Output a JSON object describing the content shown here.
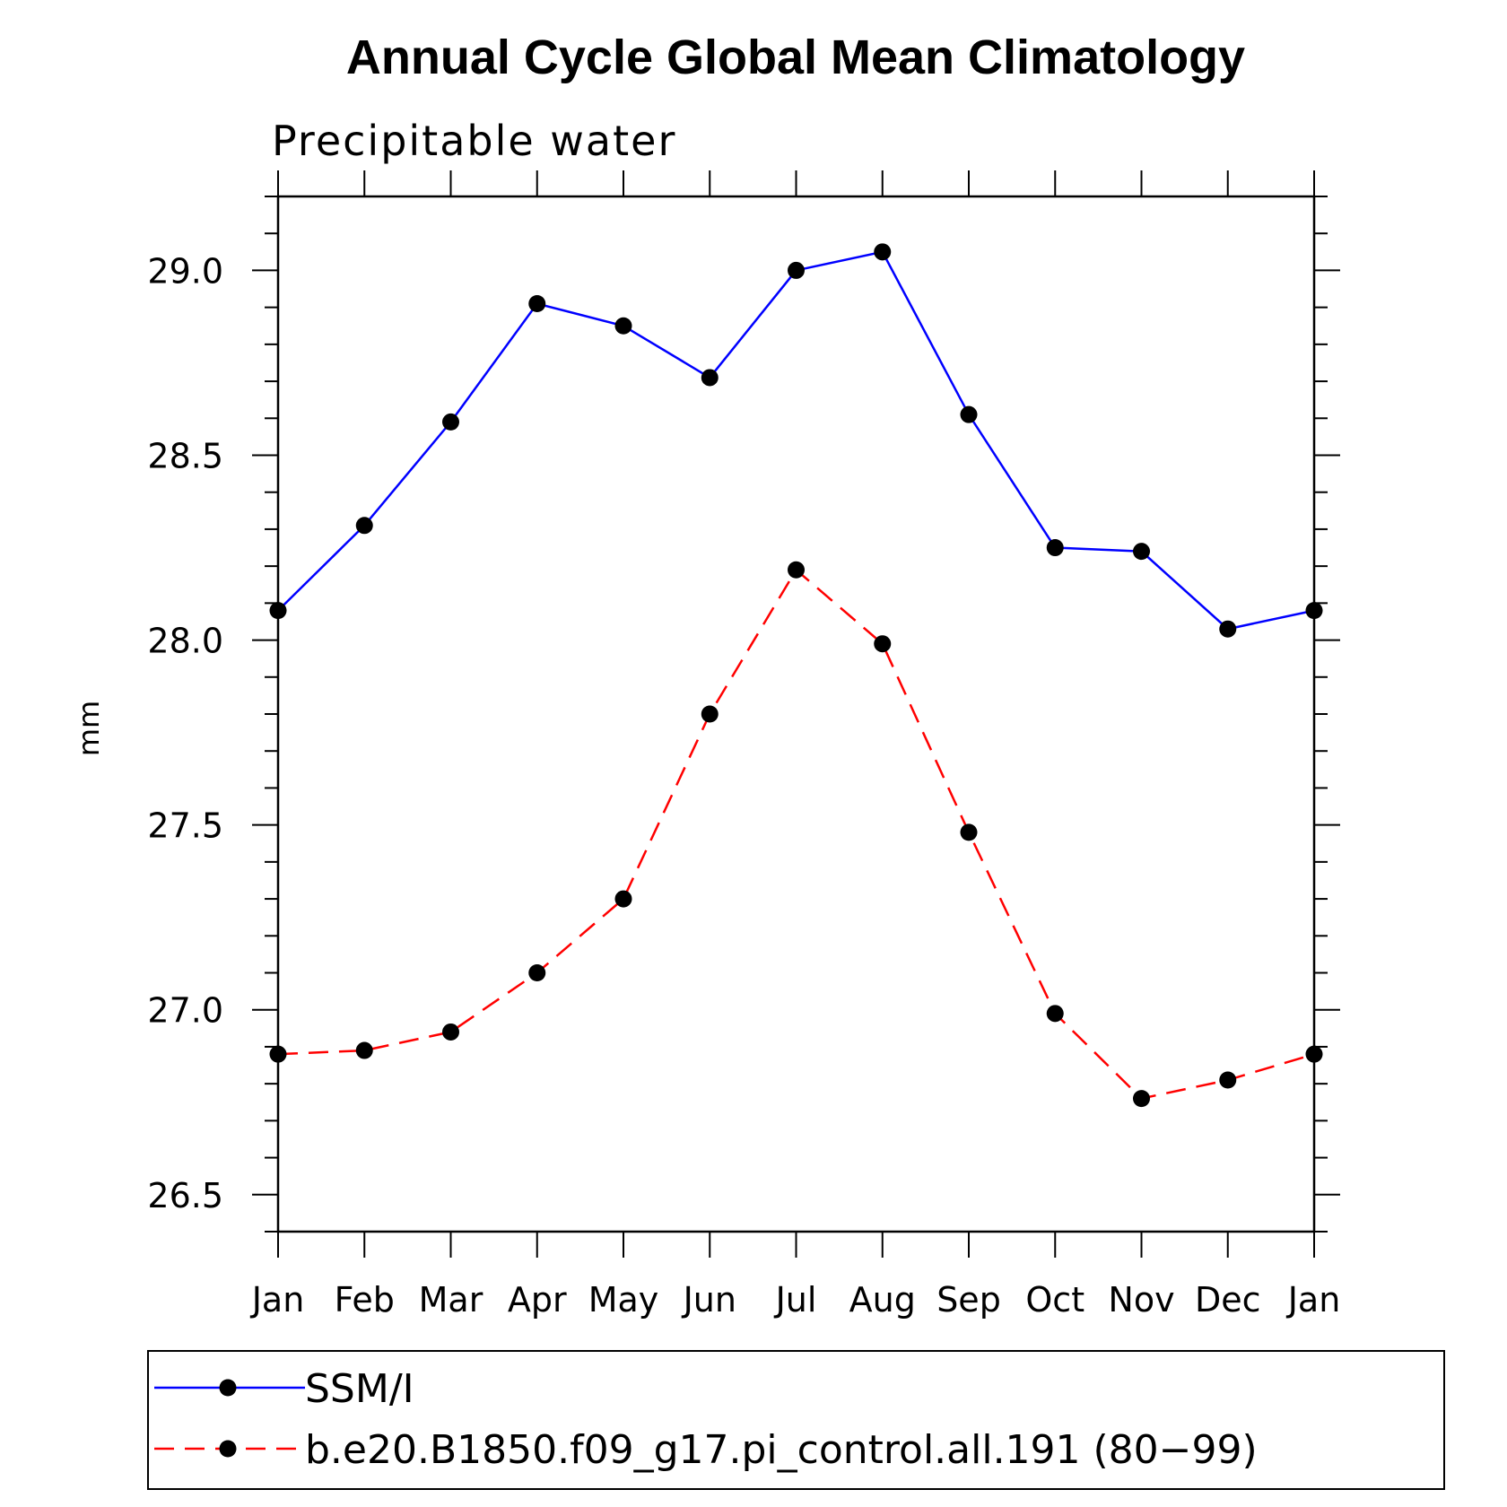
{
  "chart_data": {
    "type": "line",
    "title": "Annual Cycle Global Mean Climatology",
    "subtitle": "Precipitable water",
    "xlabel": "",
    "ylabel": "mm",
    "categories": [
      "Jan",
      "Feb",
      "Mar",
      "Apr",
      "May",
      "Jun",
      "Jul",
      "Aug",
      "Sep",
      "Oct",
      "Nov",
      "Dec",
      "Jan"
    ],
    "ylim": [
      26.4,
      29.2
    ],
    "yticks": [
      "26.5",
      "27.0",
      "27.5",
      "28.0",
      "28.5",
      "29.0"
    ],
    "ytick_values": [
      26.5,
      27.0,
      27.5,
      28.0,
      28.5,
      29.0
    ],
    "yminor_step": 0.1,
    "grid": false,
    "legend_position": "bottom",
    "series": [
      {
        "name": "SSM/I",
        "color": "#0000ff",
        "dash": "solid",
        "marker": "filled-circle",
        "values": [
          28.08,
          28.31,
          28.59,
          28.91,
          28.85,
          28.71,
          29.0,
          29.05,
          28.61,
          28.25,
          28.24,
          28.03,
          28.08
        ]
      },
      {
        "name": "b.e20.B1850.f09_g17.pi_control.all.191 (80−99)",
        "color": "#ff0000",
        "dash": "dashed",
        "marker": "filled-circle",
        "values": [
          26.88,
          26.89,
          26.94,
          27.1,
          27.3,
          27.8,
          28.19,
          27.99,
          27.48,
          26.99,
          26.76,
          26.81,
          26.88
        ]
      }
    ]
  }
}
